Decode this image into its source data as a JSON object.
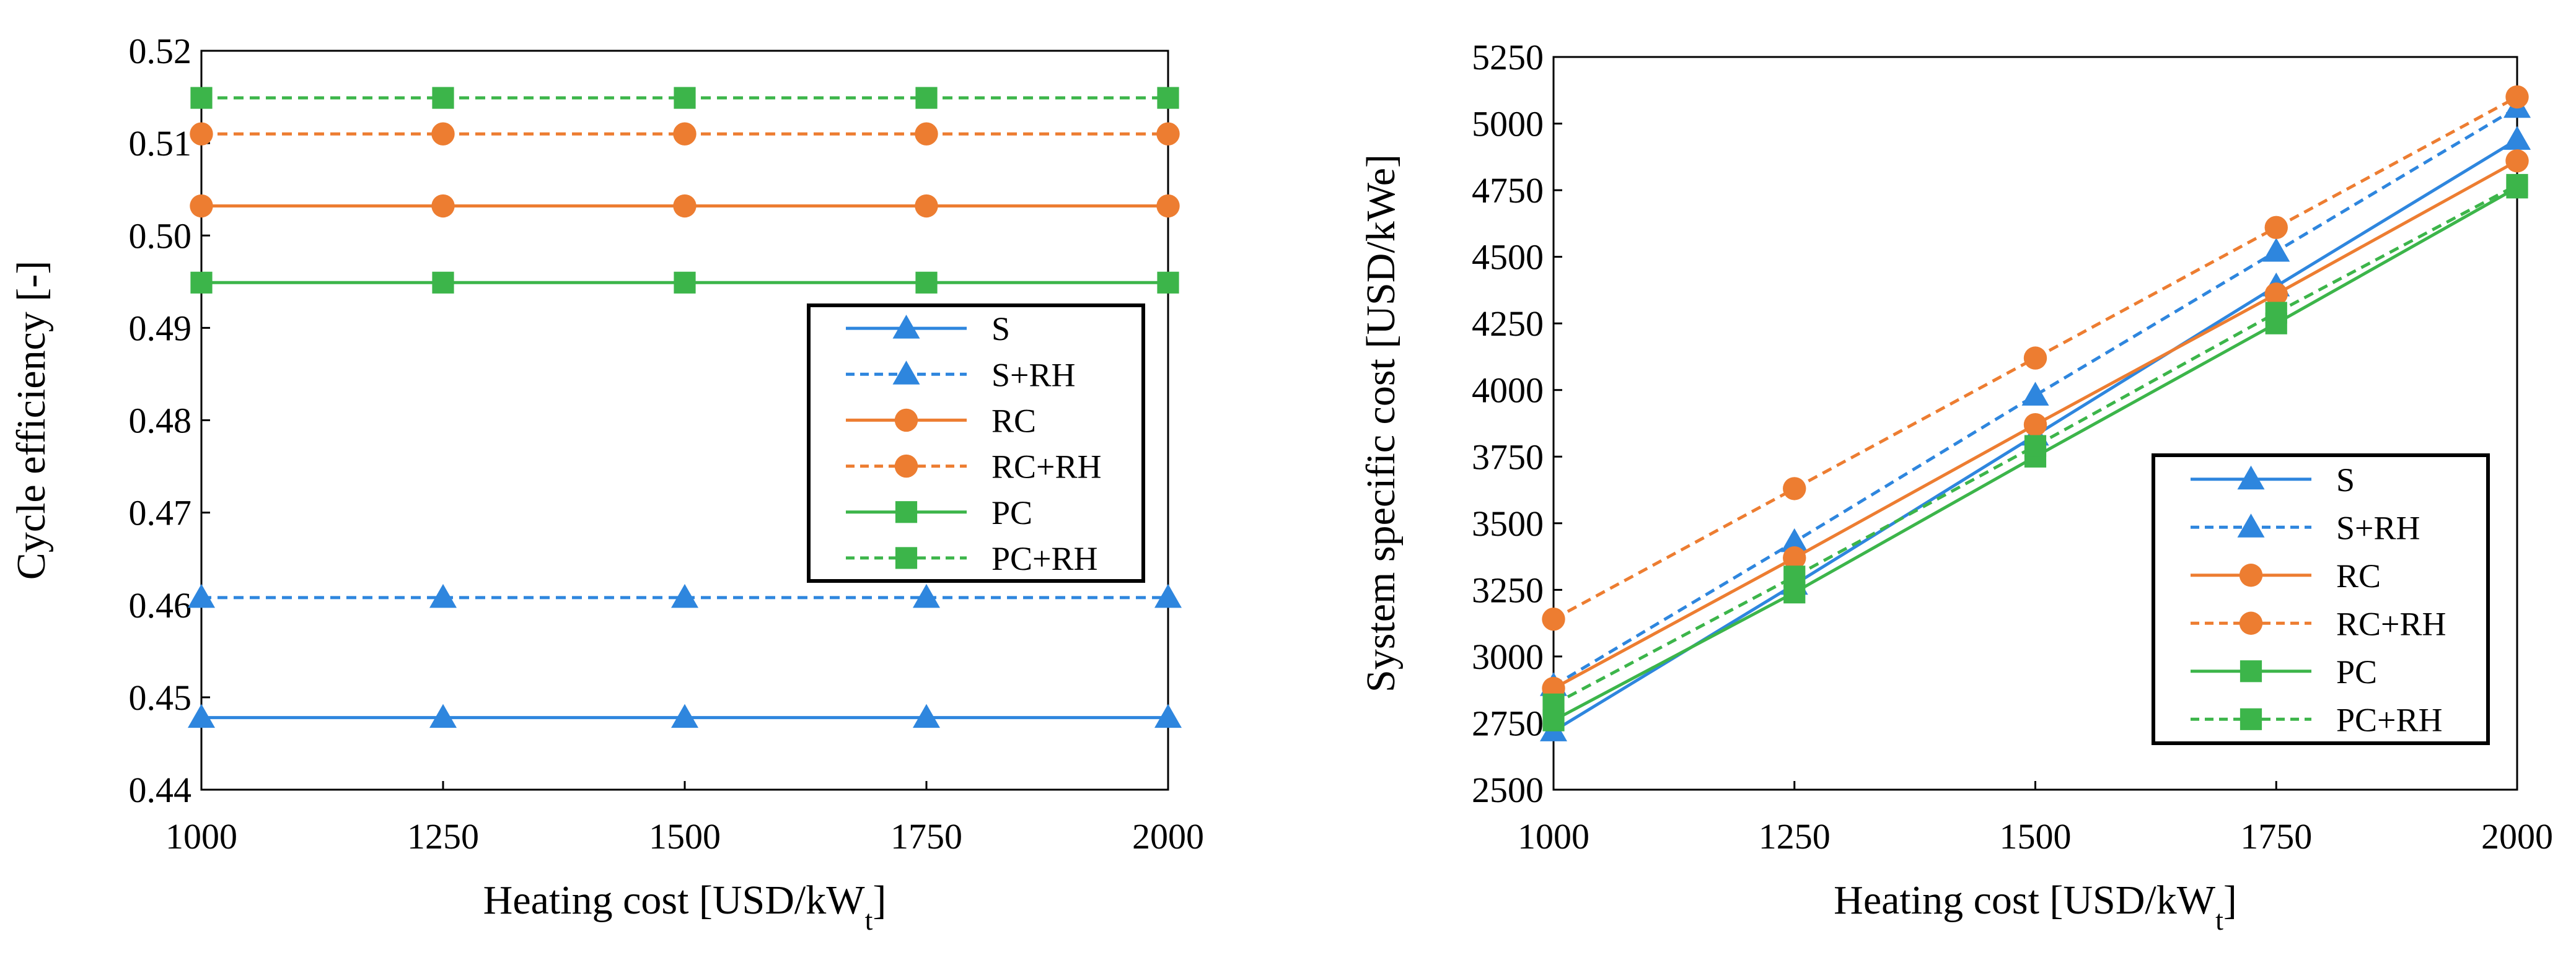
{
  "colors": {
    "blue": "#2E86DE",
    "orange": "#ED7D31",
    "green": "#3CB54A",
    "axis": "#000000"
  },
  "chart_data": [
    {
      "type": "line",
      "title": "",
      "xlabel": "Heating cost [USD/kW",
      "xlabel_sub": "t",
      "xlabel_end": "]",
      "ylabel": "Cycle efficiency [-]",
      "x": [
        1000,
        1250,
        1500,
        1750,
        2000
      ],
      "xticks": [
        "1000",
        "1250",
        "1500",
        "1750",
        "2000"
      ],
      "yticks": [
        "0.44",
        "0.45",
        "0.46",
        "0.47",
        "0.48",
        "0.49",
        "0.50",
        "0.51",
        "0.52"
      ],
      "xlim": [
        1000,
        2000
      ],
      "ylim": [
        0.44,
        0.52
      ],
      "legend_position": "center-right",
      "series": [
        {
          "name": "S",
          "color": "blue",
          "dashed": false,
          "marker": "triangle",
          "values": [
            0.4478,
            0.4478,
            0.4478,
            0.4478,
            0.4478
          ]
        },
        {
          "name": "S+RH",
          "color": "blue",
          "dashed": true,
          "marker": "triangle",
          "values": [
            0.4608,
            0.4608,
            0.4608,
            0.4608,
            0.4608
          ]
        },
        {
          "name": "RC",
          "color": "orange",
          "dashed": false,
          "marker": "circle",
          "values": [
            0.5032,
            0.5032,
            0.5032,
            0.5032,
            0.5032
          ]
        },
        {
          "name": "RC+RH",
          "color": "orange",
          "dashed": true,
          "marker": "circle",
          "values": [
            0.511,
            0.511,
            0.511,
            0.511,
            0.511
          ]
        },
        {
          "name": "PC",
          "color": "green",
          "dashed": false,
          "marker": "square",
          "values": [
            0.4949,
            0.4949,
            0.4949,
            0.4949,
            0.4949
          ]
        },
        {
          "name": "PC+RH",
          "color": "green",
          "dashed": true,
          "marker": "square",
          "values": [
            0.5149,
            0.5149,
            0.5149,
            0.5149,
            0.5149
          ]
        }
      ]
    },
    {
      "type": "line",
      "title": "",
      "xlabel": "Heating cost [USD/kW",
      "xlabel_sub": "t",
      "xlabel_end": "]",
      "ylabel": "System specific cost [USD/kWe]",
      "x": [
        1000,
        1250,
        1500,
        1750,
        2000
      ],
      "xticks": [
        "1000",
        "1250",
        "1500",
        "1750",
        "2000"
      ],
      "yticks": [
        "2500",
        "2750",
        "3000",
        "3250",
        "3500",
        "3750",
        "4000",
        "4250",
        "4500",
        "4750",
        "5000",
        "5250"
      ],
      "xlim": [
        1000,
        2000
      ],
      "ylim": [
        2500,
        5250
      ],
      "legend_position": "bottom-right",
      "series": [
        {
          "name": "S",
          "color": "blue",
          "dashed": false,
          "marker": "triangle",
          "values": [
            2720,
            3270,
            3830,
            4390,
            4940
          ]
        },
        {
          "name": "S+RH",
          "color": "blue",
          "dashed": true,
          "marker": "triangle",
          "values": [
            2890,
            3430,
            3980,
            4520,
            5060
          ]
        },
        {
          "name": "RC",
          "color": "orange",
          "dashed": false,
          "marker": "circle",
          "values": [
            2880,
            3370,
            3870,
            4360,
            4860
          ]
        },
        {
          "name": "RC+RH",
          "color": "orange",
          "dashed": true,
          "marker": "circle",
          "values": [
            3140,
            3630,
            4120,
            4610,
            5100
          ]
        },
        {
          "name": "PC",
          "color": "green",
          "dashed": false,
          "marker": "square",
          "values": [
            2760,
            3240,
            3750,
            4250,
            4760
          ]
        },
        {
          "name": "PC+RH",
          "color": "green",
          "dashed": true,
          "marker": "square",
          "values": [
            2820,
            3300,
            3790,
            4290,
            4770
          ]
        }
      ]
    }
  ]
}
